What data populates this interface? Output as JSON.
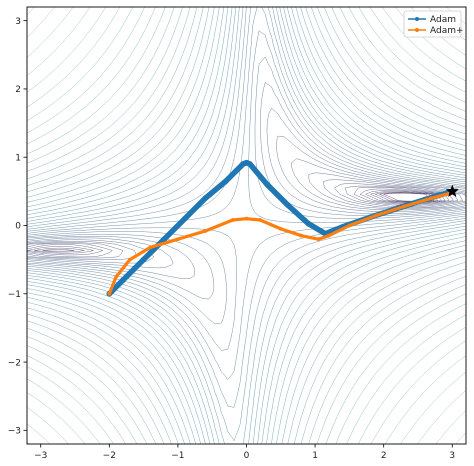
{
  "chart_data": {
    "type": "line",
    "title": "",
    "xlabel": "",
    "ylabel": "",
    "xlim": [
      -3.2,
      3.2
    ],
    "ylim": [
      -3.2,
      3.2
    ],
    "x_ticks": [
      -3,
      -2,
      -1,
      0,
      1,
      2,
      3
    ],
    "y_ticks": [
      -3,
      -2,
      -1,
      0,
      1,
      2,
      3
    ],
    "x_tick_labels": [
      "−3",
      "−2",
      "−1",
      "0",
      "1",
      "2",
      "3"
    ],
    "y_tick_labels": [
      "−3",
      "−2",
      "−1",
      "0",
      "1",
      "2",
      "3"
    ],
    "grid": false,
    "legend_position": "top-right",
    "background": "contour plot (many thin contour lines, purple to teal/green)",
    "series": [
      {
        "name": "Adam",
        "color": "#1f77b4",
        "marker": "circle",
        "x": [
          -2.0,
          -1.8,
          -1.5,
          -1.2,
          -0.9,
          -0.6,
          -0.3,
          -0.05,
          0.0,
          0.05,
          0.3,
          0.6,
          0.9,
          1.15,
          1.4,
          1.8,
          2.2,
          2.6,
          3.0
        ],
        "y": [
          -1.0,
          -0.8,
          -0.5,
          -0.2,
          0.1,
          0.4,
          0.65,
          0.9,
          0.92,
          0.9,
          0.6,
          0.3,
          0.03,
          -0.12,
          -0.02,
          0.12,
          0.25,
          0.38,
          0.5
        ]
      },
      {
        "name": "Adam+",
        "color": "#ff7f0e",
        "marker": "diamond",
        "x": [
          -2.0,
          -1.9,
          -1.7,
          -1.4,
          -1.0,
          -0.6,
          -0.2,
          0.0,
          0.2,
          0.5,
          0.8,
          1.05,
          1.2,
          1.5,
          1.9,
          2.3,
          2.7,
          3.0
        ],
        "y": [
          -1.0,
          -0.75,
          -0.5,
          -0.32,
          -0.2,
          -0.08,
          0.08,
          0.1,
          0.08,
          -0.05,
          -0.15,
          -0.2,
          -0.15,
          0.0,
          0.15,
          0.28,
          0.4,
          0.48
        ]
      }
    ],
    "annotations": [
      {
        "type": "star-marker",
        "x": 3.0,
        "y": 0.5,
        "color": "#000000"
      }
    ]
  }
}
